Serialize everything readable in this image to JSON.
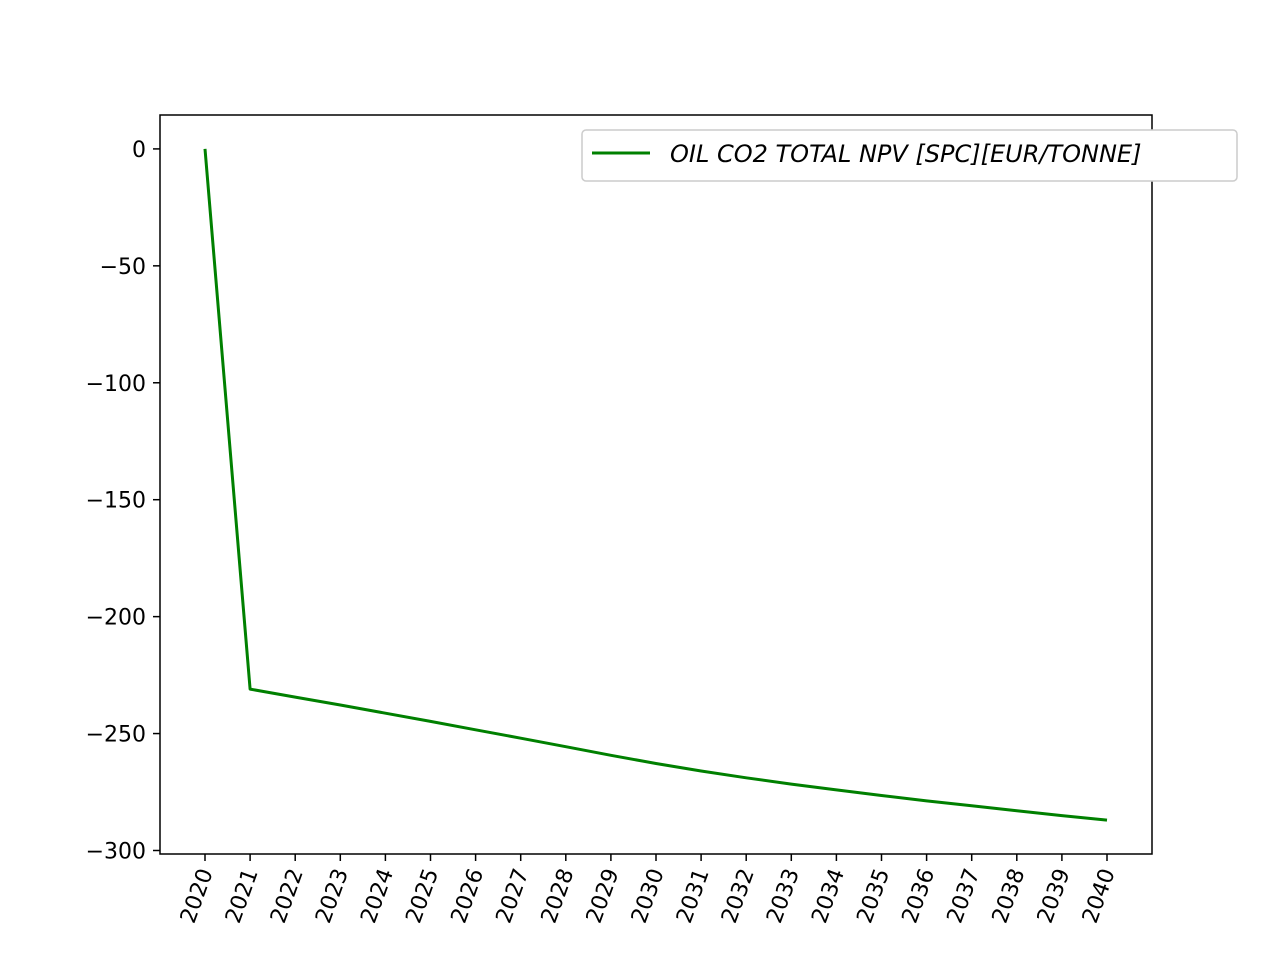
{
  "chart_data": {
    "type": "line",
    "title": "",
    "xlabel": "",
    "ylabel": "",
    "x": [
      "2020",
      "2021",
      "2022",
      "2023",
      "2024",
      "2025",
      "2026",
      "2027",
      "2028",
      "2029",
      "2030",
      "2031",
      "2032",
      "2033",
      "2034",
      "2035",
      "2036",
      "2037",
      "2038",
      "2039",
      "2040"
    ],
    "series": [
      {
        "name": "OIL CO2 TOTAL NPV [SPC][EUR/TONNE]",
        "color": "#008000",
        "values": [
          0,
          -231,
          -234.4,
          -237.8,
          -241.3,
          -244.8,
          -248.4,
          -252.0,
          -255.6,
          -259.3,
          -262.8,
          -266.0,
          -268.9,
          -271.6,
          -274.1,
          -276.5,
          -278.8,
          -280.9,
          -283.0,
          -285.1,
          -287.0
        ]
      }
    ],
    "yticks": [
      0,
      -50,
      -100,
      -150,
      -200,
      -250,
      -300
    ],
    "ytick_labels": [
      "0",
      "−50",
      "−100",
      "−150",
      "−200",
      "−250",
      "−300"
    ],
    "ylim": [
      -301.5,
      14.5
    ],
    "grid": false,
    "legend_position": "top-right"
  }
}
